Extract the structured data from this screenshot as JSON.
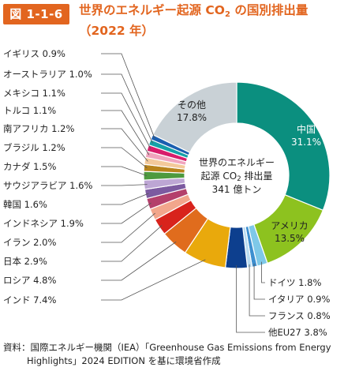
{
  "figure_number": "図 1-1-6",
  "title_part1": "世界のエネルギー起源 CO",
  "title_sub": "2",
  "title_part2": " の国別排出量",
  "title_year": "（2022 年）",
  "center": {
    "line1": "世界のエネルギー",
    "line2_pre": "起源 CO",
    "line2_sub": "2",
    "line2_post": " 排出量",
    "line3": "341 億トン"
  },
  "source_line1": "資料：国際エネルギー機関（IEA）「Greenhouse Gas Emissions from Energy",
  "source_line2": "Highlights」2024 EDITION を基に環境省作成",
  "chart_data": {
    "type": "pie",
    "variant": "donut",
    "title": "世界のエネルギー起源 CO2 の国別排出量（2022 年）",
    "total": "341 億トン",
    "unit": "%",
    "legend": "none",
    "slices": [
      {
        "name": "中国",
        "value": 31.1,
        "color": "#0b8f7f"
      },
      {
        "name": "アメリカ",
        "value": 13.5,
        "color": "#8dc21f"
      },
      {
        "name": "ドイツ",
        "value": 1.8,
        "color": "#7ec8e8"
      },
      {
        "name": "イタリア",
        "value": 0.9,
        "color": "#3d8fd0"
      },
      {
        "name": "フランス",
        "value": 0.8,
        "color": "#b9dcf2"
      },
      {
        "name": "他EU27",
        "value": 3.8,
        "color": "#0d3f8e"
      },
      {
        "name": "インド",
        "value": 7.4,
        "color": "#e9a90c"
      },
      {
        "name": "ロシア",
        "value": 4.8,
        "color": "#e06c1d"
      },
      {
        "name": "日本",
        "value": 2.9,
        "color": "#d8231c"
      },
      {
        "name": "イラン",
        "value": 2.0,
        "color": "#f2a68c"
      },
      {
        "name": "インドネシア",
        "value": 1.9,
        "color": "#b4406b"
      },
      {
        "name": "韓国",
        "value": 1.6,
        "color": "#7c5aa0"
      },
      {
        "name": "サウジアラビア",
        "value": 1.6,
        "color": "#bda6d4"
      },
      {
        "name": "カナダ",
        "value": 1.5,
        "color": "#4d9a3e"
      },
      {
        "name": "ブラジル",
        "value": 1.2,
        "color": "#b8841c"
      },
      {
        "name": "南アフリカ",
        "value": 1.2,
        "color": "#f3c99a"
      },
      {
        "name": "トルコ",
        "value": 1.1,
        "color": "#f0a4bd"
      },
      {
        "name": "メキシコ",
        "value": 1.1,
        "color": "#d81c6b"
      },
      {
        "name": "オーストラリア",
        "value": 1.0,
        "color": "#15a1a8"
      },
      {
        "name": "イギリス",
        "value": 0.9,
        "color": "#1a5fb0"
      },
      {
        "name": "その他",
        "value": 17.8,
        "color": "#c9d1d6"
      }
    ],
    "value_labels": {
      "中国": "31.1%",
      "アメリカ": "13.5%",
      "ドイツ": "1.8%",
      "イタリア": "0.9%",
      "フランス": "0.8%",
      "他EU27": "3.8%",
      "インド": "7.4%",
      "ロシア": "4.8%",
      "日本": "2.9%",
      "イラン": "2.0%",
      "インドネシア": "1.9%",
      "韓国": "1.6%",
      "サウジアラビア": "1.6%",
      "カナダ": "1.5%",
      "ブラジル": "1.2%",
      "南アフリカ": "1.2%",
      "トルコ": "1.1%",
      "メキシコ": "1.1%",
      "オーストラリア": "1.0%",
      "イギリス": "0.9%",
      "その他": "17.8%"
    }
  }
}
